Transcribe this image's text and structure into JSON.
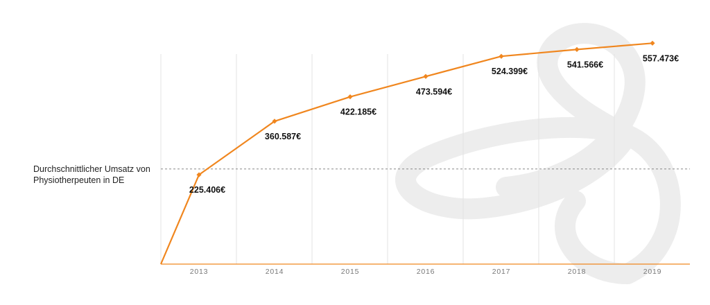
{
  "chart_data": {
    "type": "line",
    "x": [
      "",
      "2013",
      "2014",
      "2015",
      "2016",
      "2017",
      "2018",
      "2019"
    ],
    "categories": [
      "2013",
      "2014",
      "2015",
      "2016",
      "2017",
      "2018",
      "2019"
    ],
    "series": [
      {
        "values": [
          0,
          225406,
          360587,
          422185,
          473594,
          524399,
          541566,
          557473
        ],
        "labels": [
          "",
          "225.406€",
          "360.587€",
          "422.185€",
          "473.594€",
          "524.399€",
          "541.566€",
          "557.473€"
        ]
      }
    ],
    "reference_line": {
      "label": "Durchschnittlicher Umsatz von Physiotherpeuten in DE",
      "value": 240000
    },
    "ylim": [
      0,
      600000
    ],
    "grid": "vertical",
    "line_color": "#f0861e",
    "axis_color": "#f0861e",
    "grid_color": "#e3e3e3"
  }
}
